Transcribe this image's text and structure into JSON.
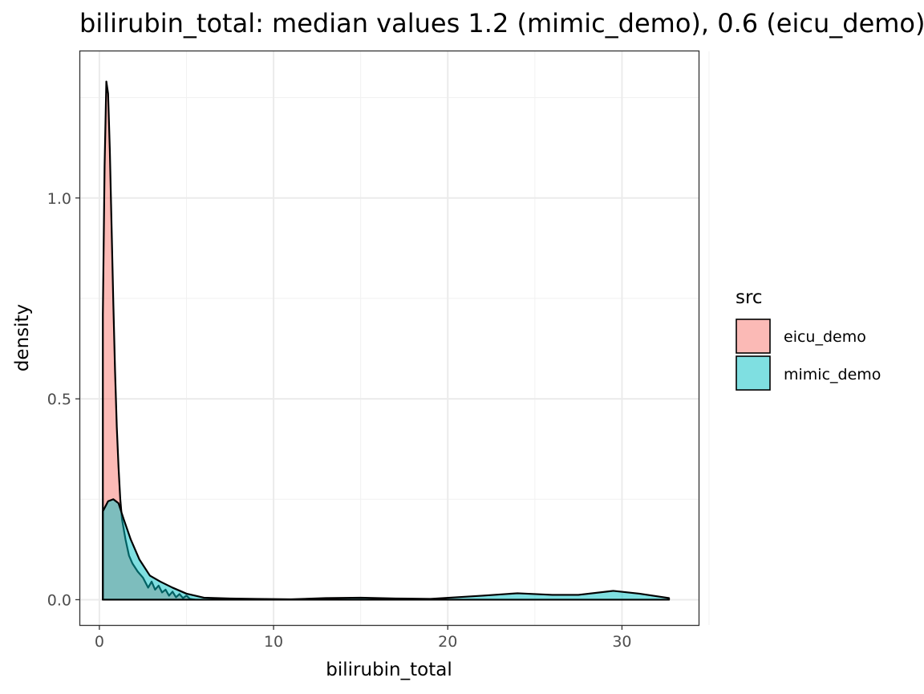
{
  "chart_data": {
    "type": "area",
    "title": "bilirubin_total: median values 1.2 (mimic_demo), 0.6 (eicu_demo)",
    "xlabel": "bilirubin_total",
    "ylabel": "density",
    "xlim": [
      -1.1,
      34.4
    ],
    "ylim": [
      -0.063,
      1.365
    ],
    "x_ticks": [
      0,
      10,
      20,
      30
    ],
    "x_tick_labels": [
      "0",
      "10",
      "20",
      "30"
    ],
    "y_ticks": [
      0.0,
      0.5,
      1.0
    ],
    "y_tick_labels": [
      "0.0",
      "0.5",
      "1.0"
    ],
    "grid": true,
    "legend": {
      "title": "src",
      "placement": "right"
    },
    "series": [
      {
        "name": "eicu_demo",
        "fill": "#F8766D",
        "x": [
          0.2,
          0.3,
          0.4,
          0.5,
          0.6,
          0.7,
          0.8,
          0.9,
          1.0,
          1.1,
          1.2,
          1.3,
          1.5,
          1.7,
          1.9,
          2.2,
          2.5,
          2.8,
          3.0,
          3.2,
          3.4,
          3.6,
          3.8,
          4.0,
          4.2,
          4.4,
          4.6,
          4.8,
          5.0,
          5.2,
          5.5
        ],
        "y": [
          0.71,
          1.08,
          1.29,
          1.26,
          1.12,
          0.93,
          0.74,
          0.57,
          0.43,
          0.33,
          0.25,
          0.2,
          0.15,
          0.11,
          0.09,
          0.07,
          0.055,
          0.03,
          0.045,
          0.025,
          0.035,
          0.018,
          0.025,
          0.01,
          0.02,
          0.006,
          0.014,
          0.004,
          0.01,
          0.002,
          0.0
        ]
      },
      {
        "name": "mimic_demo",
        "fill": "#00BFC4",
        "x": [
          0.2,
          0.5,
          0.8,
          1.1,
          1.4,
          1.8,
          2.3,
          2.9,
          3.5,
          4.2,
          5.0,
          6.0,
          7.5,
          9.0,
          11.0,
          13.0,
          15.0,
          17.0,
          19.0,
          20.5,
          22.0,
          24.0,
          26.0,
          27.5,
          29.5,
          31.0,
          32.7
        ],
        "y": [
          0.22,
          0.245,
          0.25,
          0.24,
          0.2,
          0.15,
          0.1,
          0.06,
          0.045,
          0.03,
          0.015,
          0.005,
          0.003,
          0.002,
          0.001,
          0.004,
          0.005,
          0.003,
          0.002,
          0.006,
          0.01,
          0.016,
          0.012,
          0.012,
          0.022,
          0.015,
          0.004
        ]
      }
    ]
  }
}
